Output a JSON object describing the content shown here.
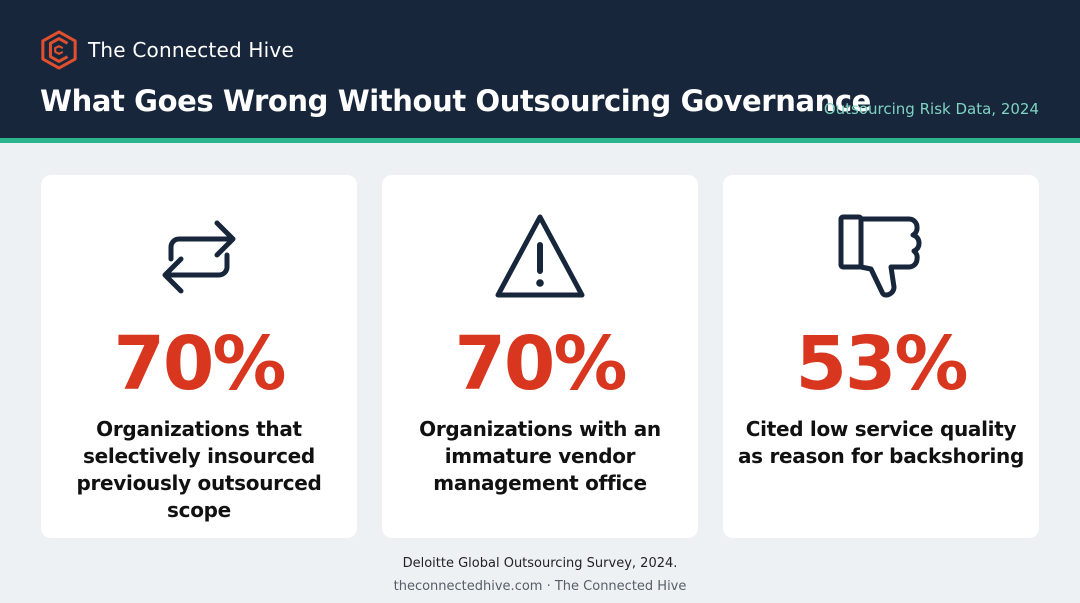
{
  "header": {
    "brand_name": "The Connected Hive",
    "title": "What Goes Wrong Without Outsourcing Governance",
    "subtitle": "Outsourcing Risk Data, 2024"
  },
  "colors": {
    "header_bg": "#17263a",
    "accent": "#2bb58f",
    "stat": "#d8361f",
    "brand_logo": "#e0502f"
  },
  "cards": [
    {
      "icon": "arrows-exchange-icon",
      "stat": "70%",
      "caption": "Organizations that selectively insourced previously outsourced scope"
    },
    {
      "icon": "warning-triangle-icon",
      "stat": "70%",
      "caption": "Organizations with an immature vendor management office"
    },
    {
      "icon": "thumbs-down-icon",
      "stat": "53%",
      "caption": "Cited low service quality as reason for backshoring"
    }
  ],
  "footer": {
    "source": "Deloitte Global Outsourcing Survey, 2024.",
    "credit": "theconnectedhive.com · The Connected Hive"
  }
}
